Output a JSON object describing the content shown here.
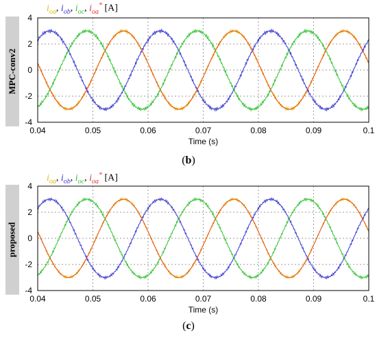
{
  "chart_data": [
    {
      "type": "line",
      "panel_label": "MPC-conv2",
      "caption_open": "(",
      "caption_letter": "b",
      "caption_close": ")",
      "legend": [
        {
          "symbol": "i",
          "sub": "oa",
          "color": "#e6b800"
        },
        {
          "symbol": "i",
          "sub": "ob",
          "color": "#3a3ad0"
        },
        {
          "symbol": "i",
          "sub": "oc",
          "color": "#33c233"
        },
        {
          "symbol": "i",
          "sub": "oa",
          "sup": "*",
          "color": "#e83030"
        }
      ],
      "legend_unit": "[A]",
      "xlabel": "Time (s)",
      "xlim": [
        0.04,
        0.1
      ],
      "ylim": [
        -4,
        4
      ],
      "x_ticks": [
        "0.04",
        "0.05",
        "0.06",
        "0.07",
        "0.08",
        "0.09",
        "0.1"
      ],
      "y_ticks": [
        "4",
        "2",
        "0",
        "-2",
        "-4"
      ],
      "grid": true,
      "frequency_hz": 50,
      "amplitude": 3,
      "phase_deg_at_x0": 170,
      "series": [
        {
          "color": "#e6b800",
          "phase_shift_deg": 0,
          "ripple": 0.12
        },
        {
          "color": "#3a3ad0",
          "phase_shift_deg": -120,
          "ripple": 0.12
        },
        {
          "color": "#33c233",
          "phase_shift_deg": 120,
          "ripple": 0.12
        },
        {
          "color": "#e83030",
          "phase_shift_deg": 0,
          "ripple": 0.0
        }
      ]
    },
    {
      "type": "line",
      "panel_label": "proposed",
      "caption_open": "(",
      "caption_letter": "c",
      "caption_close": ")",
      "legend": [
        {
          "symbol": "i",
          "sub": "oa",
          "color": "#e6b800"
        },
        {
          "symbol": "i",
          "sub": "ob",
          "color": "#3a3ad0"
        },
        {
          "symbol": "i",
          "sub": "oc",
          "color": "#33c233"
        },
        {
          "symbol": "i",
          "sub": "oa",
          "sup": "*",
          "color": "#e83030"
        }
      ],
      "legend_unit": "[A]",
      "xlabel": "Time (s)",
      "xlim": [
        0.04,
        0.1
      ],
      "ylim": [
        -4,
        4
      ],
      "x_ticks": [
        "0.04",
        "0.05",
        "0.06",
        "0.07",
        "0.08",
        "0.09",
        "0.1"
      ],
      "y_ticks": [
        "4",
        "2",
        "0",
        "-2",
        "-4"
      ],
      "grid": true,
      "frequency_hz": 50,
      "amplitude": 3,
      "phase_deg_at_x0": 170,
      "series": [
        {
          "color": "#e6b800",
          "phase_shift_deg": 0,
          "ripple": 0.1
        },
        {
          "color": "#3a3ad0",
          "phase_shift_deg": -120,
          "ripple": 0.1
        },
        {
          "color": "#33c233",
          "phase_shift_deg": 120,
          "ripple": 0.1
        },
        {
          "color": "#e83030",
          "phase_shift_deg": 0,
          "ripple": 0.0
        }
      ]
    }
  ]
}
